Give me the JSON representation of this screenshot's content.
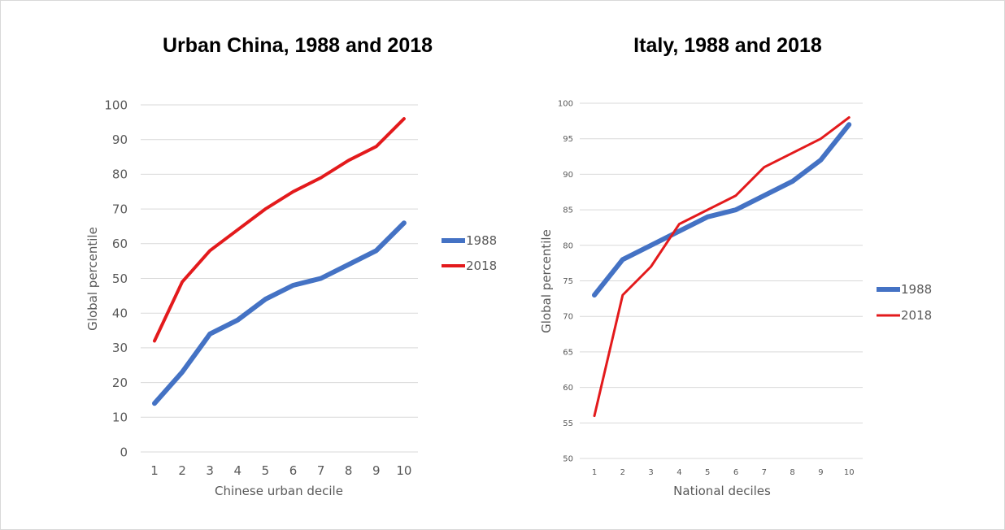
{
  "chart_data": [
    {
      "type": "line",
      "title": "Urban China, 1988 and 2018",
      "xlabel": "Chinese urban decile",
      "ylabel": "Global percentile",
      "categories": [
        "1",
        "2",
        "3",
        "4",
        "5",
        "6",
        "7",
        "8",
        "9",
        "10"
      ],
      "ylim": [
        0,
        100
      ],
      "yticks": [
        0,
        10,
        20,
        30,
        40,
        50,
        60,
        70,
        80,
        90,
        100
      ],
      "grid": true,
      "legend_position": "right",
      "series": [
        {
          "name": "1988",
          "color": "#4472C4",
          "values": [
            14,
            23,
            34,
            38,
            44,
            48,
            50,
            54,
            58,
            66
          ]
        },
        {
          "name": "2018",
          "color": "#E31A1C",
          "values": [
            32,
            49,
            58,
            64,
            70,
            75,
            79,
            84,
            88,
            96
          ]
        }
      ]
    },
    {
      "type": "line",
      "title": "Italy, 1988 and 2018",
      "xlabel": "National deciles",
      "ylabel": "Global percentile",
      "categories": [
        "1",
        "2",
        "3",
        "4",
        "5",
        "6",
        "7",
        "8",
        "9",
        "10"
      ],
      "ylim": [
        50,
        100
      ],
      "yticks": [
        50,
        55,
        60,
        65,
        70,
        75,
        80,
        85,
        90,
        95,
        100
      ],
      "grid": true,
      "legend_position": "right",
      "series": [
        {
          "name": "1988",
          "color": "#4472C4",
          "values": [
            73,
            78,
            80,
            82,
            84,
            85,
            87,
            89,
            92,
            97
          ]
        },
        {
          "name": "2018",
          "color": "#E31A1C",
          "values": [
            56,
            73,
            77,
            83,
            85,
            87,
            91,
            93,
            95,
            98
          ]
        }
      ]
    }
  ]
}
